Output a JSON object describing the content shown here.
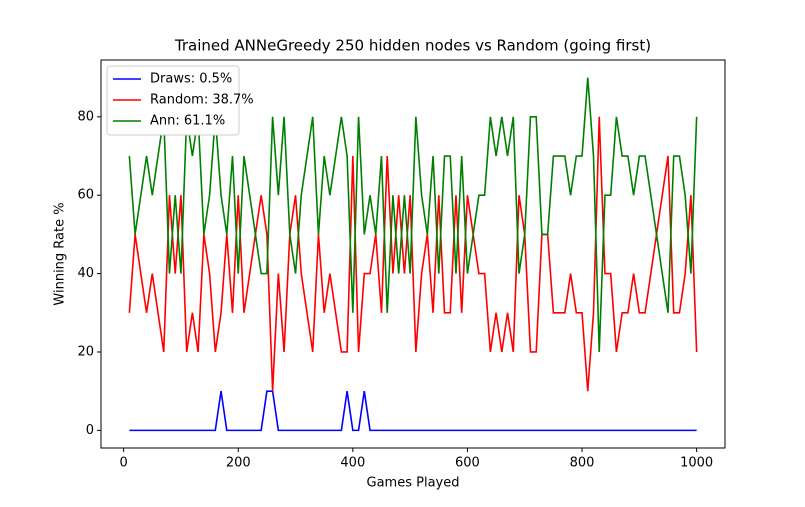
{
  "chart_data": {
    "type": "line",
    "title": "Trained ANNeGreedy 250 hidden nodes vs Random (going first)",
    "x_label": "Games Played",
    "y_label": "Winning Rate %",
    "x": [
      10,
      20,
      30,
      40,
      50,
      60,
      70,
      80,
      90,
      100,
      110,
      120,
      130,
      140,
      150,
      160,
      170,
      180,
      190,
      200,
      210,
      220,
      230,
      240,
      250,
      260,
      270,
      280,
      290,
      300,
      310,
      320,
      330,
      340,
      350,
      360,
      370,
      380,
      390,
      400,
      410,
      420,
      430,
      440,
      450,
      460,
      470,
      480,
      490,
      500,
      510,
      520,
      530,
      540,
      550,
      560,
      570,
      580,
      590,
      600,
      610,
      620,
      630,
      640,
      650,
      660,
      670,
      680,
      690,
      700,
      710,
      720,
      730,
      740,
      750,
      760,
      770,
      780,
      790,
      800,
      810,
      820,
      830,
      840,
      850,
      860,
      870,
      880,
      890,
      900,
      910,
      920,
      930,
      940,
      950,
      960,
      970,
      980,
      990,
      1000
    ],
    "series": [
      {
        "name": "Draws: 0.5%",
        "color": "#0000ff",
        "values": [
          0,
          0,
          0,
          0,
          0,
          0,
          0,
          0,
          0,
          0,
          0,
          0,
          0,
          0,
          0,
          0,
          10,
          0,
          0,
          0,
          0,
          0,
          0,
          0,
          10,
          10,
          0,
          0,
          0,
          0,
          0,
          0,
          0,
          0,
          0,
          0,
          0,
          0,
          10,
          0,
          0,
          10,
          0,
          0,
          0,
          0,
          0,
          0,
          0,
          0,
          0,
          0,
          0,
          0,
          0,
          0,
          0,
          0,
          0,
          0,
          0,
          0,
          0,
          0,
          0,
          0,
          0,
          0,
          0,
          0,
          0,
          0,
          0,
          0,
          0,
          0,
          0,
          0,
          0,
          0,
          0,
          0,
          0,
          0,
          0,
          0,
          0,
          0,
          0,
          0,
          0,
          0,
          0,
          0,
          0,
          0,
          0,
          0,
          0,
          0
        ]
      },
      {
        "name": "Random: 38.7%",
        "color": "#ff0000",
        "values": [
          30,
          50,
          40,
          30,
          40,
          30,
          20,
          60,
          40,
          60,
          20,
          30,
          20,
          50,
          40,
          20,
          30,
          50,
          30,
          60,
          30,
          40,
          50,
          60,
          50,
          10,
          40,
          20,
          50,
          60,
          40,
          30,
          20,
          50,
          30,
          40,
          30,
          20,
          20,
          70,
          20,
          40,
          40,
          50,
          30,
          70,
          40,
          60,
          40,
          60,
          20,
          40,
          50,
          30,
          60,
          30,
          30,
          60,
          30,
          60,
          50,
          40,
          40,
          20,
          30,
          20,
          30,
          20,
          60,
          50,
          20,
          20,
          50,
          50,
          30,
          30,
          30,
          40,
          30,
          30,
          10,
          30,
          80,
          40,
          40,
          20,
          30,
          30,
          40,
          30,
          30,
          40,
          50,
          60,
          70,
          30,
          30,
          40,
          60,
          20
        ]
      },
      {
        "name": "Ann: 61.1%",
        "color": "#008000",
        "values": [
          70,
          50,
          60,
          70,
          60,
          70,
          80,
          40,
          60,
          40,
          80,
          70,
          80,
          50,
          60,
          80,
          60,
          50,
          70,
          40,
          70,
          60,
          50,
          40,
          40,
          80,
          60,
          80,
          50,
          40,
          60,
          70,
          80,
          50,
          70,
          60,
          70,
          80,
          70,
          30,
          80,
          50,
          60,
          50,
          70,
          30,
          60,
          40,
          60,
          40,
          80,
          60,
          50,
          70,
          40,
          70,
          70,
          40,
          70,
          40,
          50,
          60,
          60,
          80,
          70,
          80,
          70,
          80,
          40,
          50,
          80,
          80,
          50,
          50,
          70,
          70,
          70,
          60,
          70,
          70,
          90,
          70,
          20,
          60,
          60,
          80,
          70,
          70,
          60,
          70,
          70,
          60,
          50,
          40,
          30,
          70,
          70,
          60,
          40,
          80
        ]
      }
    ],
    "xlim": [
      -39.5,
      1049.5
    ],
    "ylim": [
      -4.5,
      94.5
    ],
    "xticks": [
      0,
      200,
      400,
      600,
      800,
      1000
    ],
    "yticks": [
      0,
      20,
      40,
      60,
      80
    ],
    "legend": "upper-left"
  }
}
